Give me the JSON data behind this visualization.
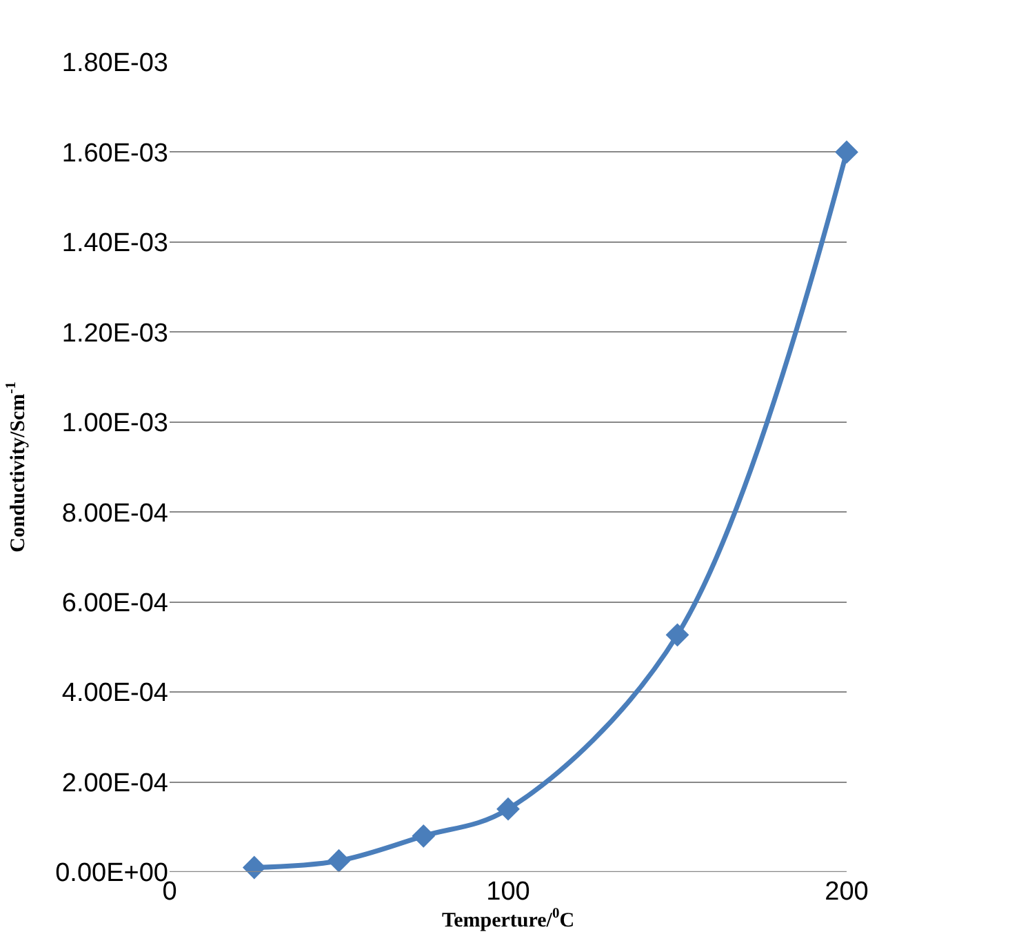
{
  "chart_data": {
    "type": "line",
    "xlabel": "Temperture/$^{0}$C",
    "ylabel": "Conductivity/Scm$^{-1}$",
    "x": [
      25,
      50,
      75,
      100,
      150,
      200
    ],
    "series": [
      {
        "color": "#4a7ebb",
        "values": [
          1e-05,
          2.5e-05,
          8e-05,
          0.00014,
          0.000527,
          0.0016
        ]
      }
    ],
    "xlim": [
      0,
      200
    ],
    "xticks": [
      0,
      100,
      200
    ],
    "ylim": [
      0,
      0.0018
    ],
    "yticks": [
      {
        "value": 0,
        "label": "0.00E+00"
      },
      {
        "value": 0.0002,
        "label": "2.00E-04"
      },
      {
        "value": 0.0004,
        "label": "4.00E-04"
      },
      {
        "value": 0.0006,
        "label": "6.00E-04"
      },
      {
        "value": 0.0008,
        "label": "8.00E-04"
      },
      {
        "value": 0.001,
        "label": "1.00E-03"
      },
      {
        "value": 0.0012,
        "label": "1.20E-03"
      },
      {
        "value": 0.0014,
        "label": "1.40E-03"
      },
      {
        "value": 0.0016,
        "label": "1.60E-03"
      },
      {
        "value": 0.0018,
        "label": "1.80E-03"
      }
    ],
    "grid": "y",
    "marker": "diamond",
    "line_style": "solid",
    "legend": false
  }
}
